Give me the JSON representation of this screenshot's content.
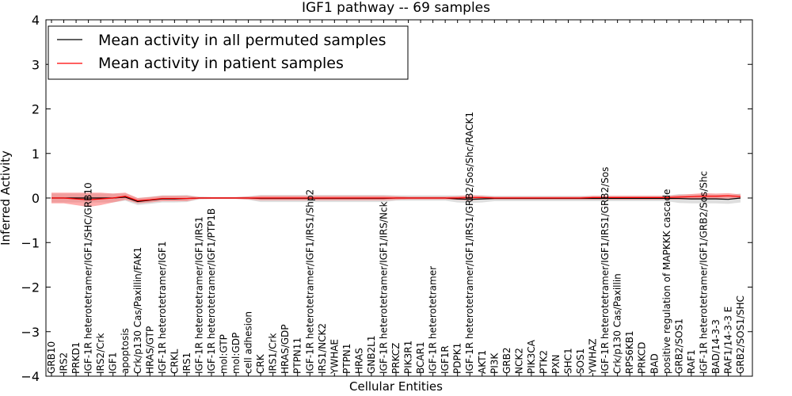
{
  "chart_data": {
    "type": "line",
    "title": "IGF1 pathway -- 69 samples",
    "xlabel": "Cellular Entities",
    "ylabel": "Inferred Activity",
    "ylim": [
      -4,
      4
    ],
    "yticks": [
      -4,
      -3,
      -2,
      -1,
      0,
      1,
      2,
      3,
      4
    ],
    "ytick_labels": [
      "−4",
      "−3",
      "−2",
      "−1",
      "0",
      "1",
      "2",
      "3",
      "4"
    ],
    "grid": false,
    "legend": {
      "placement": "top-left",
      "entries": [
        {
          "label": "Mean activity in all permuted samples",
          "color": "#000000"
        },
        {
          "label": "Mean activity in patient samples",
          "color": "#ff0000"
        }
      ]
    },
    "categories": [
      "GRB10",
      "IRS2",
      "PRKD1",
      "IGF-1R heterotetramer/IGF1/SHC/GRB10",
      "IRS2/Crk",
      "IGF1",
      "apoptosis",
      "Crk/p130 Cas/Paxillin/FAK1",
      "HRAS/GTP",
      "IGF-1R heterotetramer/IGF1",
      "CRKL",
      "IRS1",
      "IGF-1R heterotetramer/IGF1/IRS1",
      "IGF-1R heterotetramer/IGF1/PTP1B",
      "mol:GTP",
      "mol:GDP",
      "cell adhesion",
      "CRK",
      "IRS1/Crk",
      "HRAS/GDP",
      "PTPN11",
      "IGF-1R heterotetramer/IGF1/IRS1/Shp2",
      "IRS1/NCK2",
      "YWHAE",
      "PTPN1",
      "HRAS",
      "GNB2L1",
      "IGF-1R heterotetramer/IGF1/IRS/Nck",
      "PRKCZ",
      "PIK3R1",
      "BCAR1",
      "IGF-1R heterotetramer",
      "IGF1R",
      "PDPK1",
      "IGF-1R heterotetramer/IGF1/IRS1/GRB2/Sos/Shc/RACK1",
      "AKT1",
      "PI3K",
      "GRB2",
      "NCK2",
      "PIK3CA",
      "PTK2",
      "PXN",
      "SHC1",
      "SOS1",
      "YWHAZ",
      "IGF-1R heterotetramer/IGF1/IRS1/GRB2/Sos",
      "Crk/p130 Cas/Paxillin",
      "RPS6KB1",
      "PRKCD",
      "BAD",
      "positive regulation of MAPKKK cascade",
      "GRB2/SOS1",
      "RAF1",
      "IGF-1R heterotetramer/IGF1/GRB2/Sos/Shc",
      "BAD/14-3-3",
      "RAF1/14-3-3 E",
      "GRB2/SOS1/SHC"
    ],
    "series": [
      {
        "name": "Mean activity in all permuted samples",
        "color": "#000000",
        "band_color": "#c8c8c8",
        "values": [
          0,
          0,
          0,
          0,
          0,
          0,
          0.02,
          -0.08,
          -0.05,
          -0.02,
          -0.02,
          -0.01,
          0,
          0,
          0,
          0,
          0,
          -0.01,
          -0.01,
          -0.01,
          -0.01,
          -0.01,
          -0.01,
          -0.01,
          -0.01,
          -0.01,
          -0.01,
          -0.01,
          0,
          0,
          0,
          0,
          0,
          -0.02,
          -0.03,
          -0.02,
          -0.01,
          -0.01,
          -0.01,
          -0.01,
          -0.01,
          -0.01,
          -0.01,
          -0.01,
          -0.01,
          -0.01,
          -0.01,
          -0.01,
          -0.01,
          -0.01,
          -0.01,
          -0.01,
          -0.02,
          -0.02,
          -0.02,
          -0.03,
          0
        ],
        "band": [
          0.1,
          0.1,
          0.1,
          0.1,
          0.1,
          0.1,
          0.08,
          0.08,
          0.08,
          0.08,
          0.08,
          0.08,
          0.03,
          0.02,
          0.02,
          0.02,
          0.04,
          0.08,
          0.08,
          0.08,
          0.08,
          0.08,
          0.08,
          0.08,
          0.08,
          0.08,
          0.08,
          0.08,
          0.06,
          0.06,
          0.06,
          0.06,
          0.06,
          0.08,
          0.08,
          0.08,
          0.06,
          0.06,
          0.06,
          0.06,
          0.06,
          0.06,
          0.06,
          0.06,
          0.06,
          0.06,
          0.06,
          0.06,
          0.06,
          0.06,
          0.06,
          0.1,
          0.1,
          0.1,
          0.1,
          0.1,
          0.1
        ]
      },
      {
        "name": "Mean activity in patient samples",
        "color": "#ff0000",
        "band_color": "#ff6a6a",
        "values": [
          0,
          0,
          -0.02,
          -0.04,
          -0.02,
          0,
          0.04,
          -0.06,
          -0.04,
          -0.01,
          -0.01,
          -0.01,
          0,
          0,
          0,
          0,
          0,
          0,
          0,
          0,
          0,
          0,
          0,
          0,
          0,
          0,
          0,
          0,
          0,
          0,
          0,
          0,
          0,
          0,
          0.01,
          0.01,
          0,
          0,
          0,
          0,
          0,
          0,
          0,
          0,
          0.01,
          0.01,
          0.01,
          0.01,
          0.01,
          0.01,
          0.01,
          0.02,
          0.03,
          0.04,
          0.04,
          0.05,
          0.03
        ],
        "band": [
          0.12,
          0.12,
          0.14,
          0.16,
          0.14,
          0.1,
          0.08,
          0.06,
          0.06,
          0.06,
          0.06,
          0.06,
          0.02,
          0.02,
          0.02,
          0.02,
          0.03,
          0.05,
          0.05,
          0.05,
          0.05,
          0.05,
          0.05,
          0.05,
          0.05,
          0.05,
          0.05,
          0.05,
          0.04,
          0.03,
          0.03,
          0.03,
          0.03,
          0.04,
          0.06,
          0.04,
          0.03,
          0.03,
          0.03,
          0.03,
          0.03,
          0.03,
          0.03,
          0.03,
          0.04,
          0.04,
          0.04,
          0.04,
          0.04,
          0.04,
          0.04,
          0.05,
          0.06,
          0.07,
          0.06,
          0.06,
          0.05
        ]
      }
    ]
  }
}
